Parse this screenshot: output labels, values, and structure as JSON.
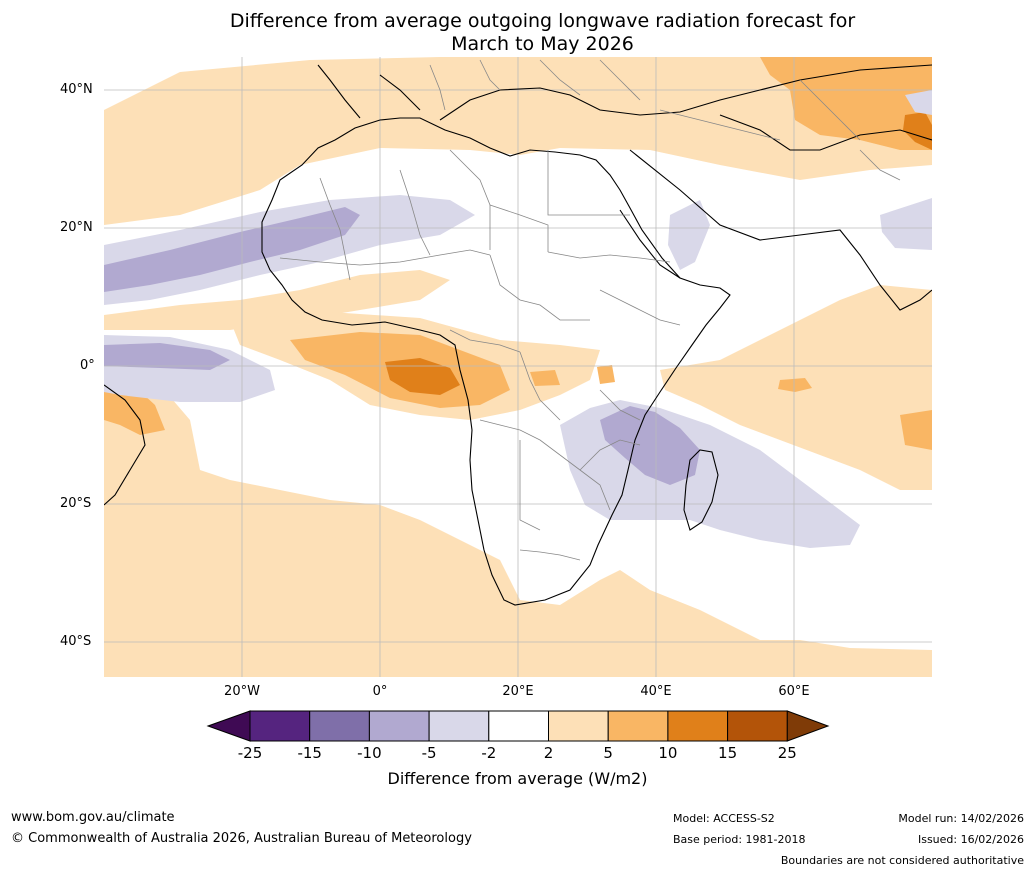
{
  "title_line1": "Difference from average outgoing longwave radiation forecast for",
  "title_line2": "March to May 2026",
  "lat_labels": [
    "40°N",
    "20°N",
    "0°",
    "20°S",
    "40°S"
  ],
  "lon_labels": [
    "20°W",
    "0°",
    "20°E",
    "40°E",
    "60°E"
  ],
  "colorbar": {
    "label": "Difference from average (W/m2)",
    "ticks": [
      "-25",
      "-15",
      "-10",
      "-5",
      "-2",
      "2",
      "5",
      "10",
      "15",
      "25"
    ],
    "colors": [
      "#3f0a54",
      "#55247f",
      "#7f6fa9",
      "#b1a9d0",
      "#d9d8e9",
      "#ffffff",
      "#fde0b7",
      "#f9b664",
      "#e0801a",
      "#b35409",
      "#7f3b07"
    ]
  },
  "footer": {
    "website": "www.bom.gov.au/climate",
    "copyright": "© Commonwealth of Australia 2026, Australian Bureau of Meteorology",
    "model": "Model: ACCESS-S2",
    "base_period": "Base period: 1981-2018",
    "model_run": "Model run: 14/02/2026",
    "issued": "Issued: 16/02/2026",
    "disclaimer": "Boundaries are not considered authoritative"
  }
}
